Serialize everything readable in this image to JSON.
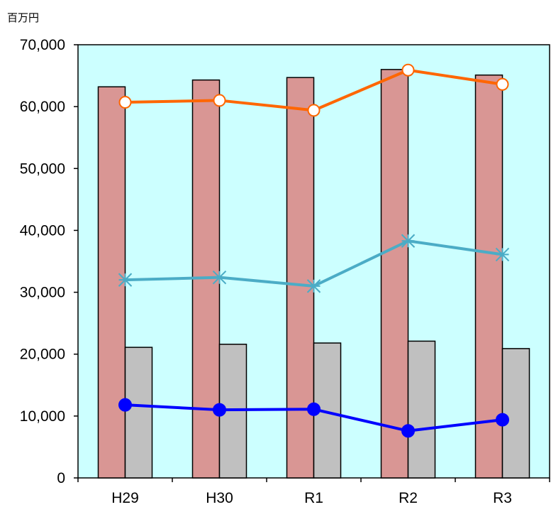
{
  "chart_data": {
    "type": "bar",
    "title": "",
    "xlabel": "",
    "ylabel": "",
    "unit_label": "百万円",
    "categories": [
      "H29",
      "H30",
      "R1",
      "R2",
      "R3"
    ],
    "ylim": [
      0,
      70000
    ],
    "yticks": [
      0,
      10000,
      20000,
      30000,
      40000,
      50000,
      60000,
      70000
    ],
    "ytick_labels": [
      "0",
      "10,000",
      "20,000",
      "30,000",
      "40,000",
      "50,000",
      "60,000",
      "70,000"
    ],
    "grid": false,
    "plot_background": "#ccffff",
    "bar_series": [
      {
        "values": [
          63200,
          64300,
          64700,
          66000,
          65100
        ],
        "color": "#d99694"
      },
      {
        "values": [
          21100,
          21600,
          21800,
          22100,
          20900
        ],
        "color": "#c0c0c0"
      }
    ],
    "line_series": [
      {
        "values": [
          60700,
          61000,
          59400,
          65900,
          63600
        ],
        "color": "#ff6600",
        "marker": "open-circle"
      },
      {
        "values": [
          32000,
          32400,
          31000,
          38300,
          36100
        ],
        "color": "#4bacc6",
        "marker": "asterisk"
      },
      {
        "values": [
          11800,
          11000,
          11100,
          7600,
          9400
        ],
        "color": "#0000ff",
        "marker": "filled-circle"
      }
    ]
  }
}
